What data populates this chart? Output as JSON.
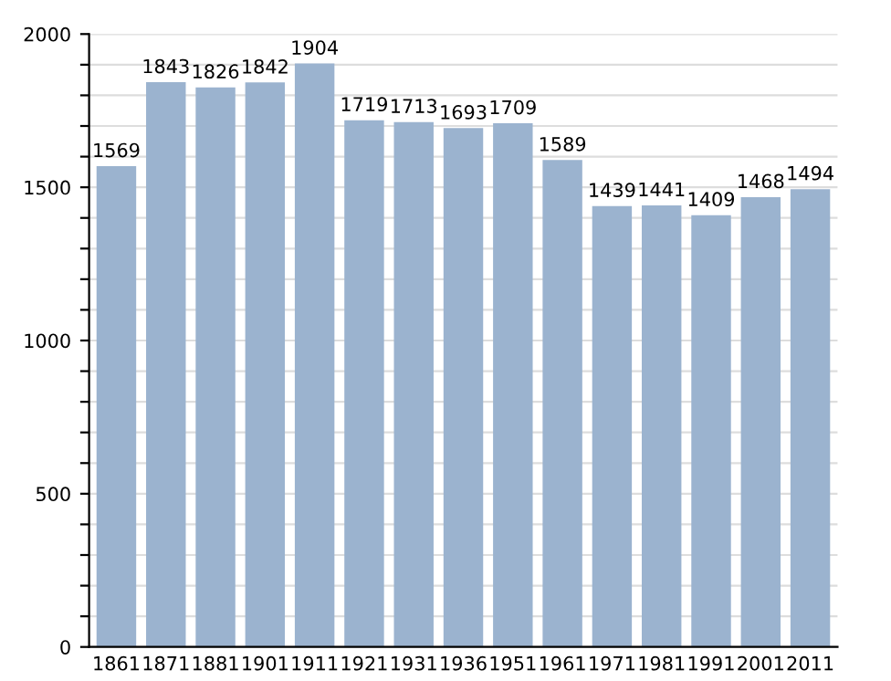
{
  "chart_data": {
    "type": "bar",
    "categories": [
      "1861",
      "1871",
      "1881",
      "1901",
      "1911",
      "1921",
      "1931",
      "1936",
      "1951",
      "1961",
      "1971",
      "1981",
      "1991",
      "2001",
      "2011"
    ],
    "values": [
      1569,
      1843,
      1826,
      1842,
      1904,
      1719,
      1713,
      1693,
      1709,
      1589,
      1439,
      1441,
      1409,
      1468,
      1494
    ],
    "color": "#9bb3cf",
    "data_labels": true,
    "ylim": [
      0,
      2000
    ],
    "yticks": [
      0,
      {
        "value": 100,
        "label": null
      },
      {
        "value": 200,
        "label": null
      },
      {
        "value": 300,
        "label": null
      },
      {
        "value": 400,
        "label": null
      },
      500,
      {
        "value": 600,
        "label": null
      },
      {
        "value": 700,
        "label": null
      },
      {
        "value": 800,
        "label": null
      },
      {
        "value": 900,
        "label": null
      },
      1000,
      {
        "value": 1100,
        "label": null
      },
      {
        "value": 1200,
        "label": null
      },
      {
        "value": 1300,
        "label": null
      },
      {
        "value": 1400,
        "label": null
      },
      1500,
      {
        "value": 1600,
        "label": null
      },
      {
        "value": 1700,
        "label": null
      },
      {
        "value": 1800,
        "label": null
      },
      {
        "value": 1900,
        "label": null
      },
      2000
    ],
    "grid": "y"
  }
}
